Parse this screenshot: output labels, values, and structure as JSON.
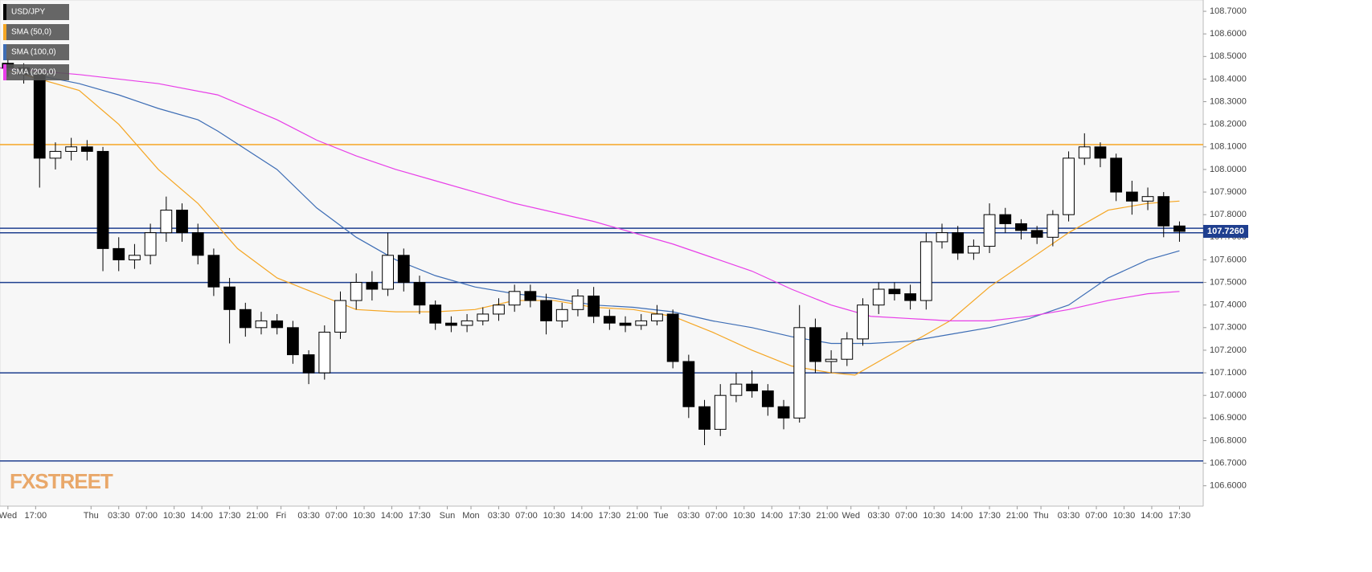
{
  "chart_data": {
    "type": "candlestick",
    "logo": "FXSTREET",
    "xlim": [
      0,
      304
    ],
    "ylim": [
      106.51,
      108.75
    ],
    "xticks": [
      {
        "value": 2,
        "label": "Wed"
      },
      {
        "value": 9,
        "label": "17:00"
      },
      {
        "value": 23,
        "label": "Thu"
      },
      {
        "value": 30,
        "label": "03:30"
      },
      {
        "value": 37,
        "label": "07:00"
      },
      {
        "value": 44,
        "label": "10:30"
      },
      {
        "value": 51,
        "label": "14:00"
      },
      {
        "value": 58,
        "label": "17:30"
      },
      {
        "value": 65,
        "label": "21:00"
      },
      {
        "value": 71,
        "label": "Fri"
      },
      {
        "value": 78,
        "label": "03:30"
      },
      {
        "value": 85,
        "label": "07:00"
      },
      {
        "value": 92,
        "label": "10:30"
      },
      {
        "value": 99,
        "label": "14:00"
      },
      {
        "value": 106,
        "label": "17:30"
      },
      {
        "value": 113,
        "label": "Sun"
      },
      {
        "value": 119,
        "label": "Mon"
      },
      {
        "value": 126,
        "label": "03:30"
      },
      {
        "value": 133,
        "label": "07:00"
      },
      {
        "value": 140,
        "label": "10:30"
      },
      {
        "value": 147,
        "label": "14:00"
      },
      {
        "value": 154,
        "label": "17:30"
      },
      {
        "value": 161,
        "label": "21:00"
      },
      {
        "value": 167,
        "label": "Tue"
      },
      {
        "value": 174,
        "label": "03:30"
      },
      {
        "value": 181,
        "label": "07:00"
      },
      {
        "value": 188,
        "label": "10:30"
      },
      {
        "value": 195,
        "label": "14:00"
      },
      {
        "value": 202,
        "label": "17:30"
      },
      {
        "value": 209,
        "label": "21:00"
      },
      {
        "value": 215,
        "label": "Wed"
      },
      {
        "value": 222,
        "label": "03:30"
      },
      {
        "value": 229,
        "label": "07:00"
      },
      {
        "value": 236,
        "label": "10:30"
      },
      {
        "value": 243,
        "label": "14:00"
      },
      {
        "value": 250,
        "label": "17:30"
      },
      {
        "value": 257,
        "label": "21:00"
      },
      {
        "value": 263,
        "label": "Thu"
      },
      {
        "value": 270,
        "label": "03:30"
      },
      {
        "value": 277,
        "label": "07:00"
      },
      {
        "value": 284,
        "label": "10:30"
      },
      {
        "value": 291,
        "label": "14:00"
      },
      {
        "value": 298,
        "label": "17:30"
      }
    ],
    "yticks": [
      {
        "value": 106.6,
        "label": "106.6000"
      },
      {
        "value": 106.7,
        "label": "106.7000"
      },
      {
        "value": 106.8,
        "label": "106.8000"
      },
      {
        "value": 106.9,
        "label": "106.9000"
      },
      {
        "value": 107.0,
        "label": "107.0000"
      },
      {
        "value": 107.1,
        "label": "107.1000"
      },
      {
        "value": 107.2,
        "label": "107.2000"
      },
      {
        "value": 107.3,
        "label": "107.3000"
      },
      {
        "value": 107.4,
        "label": "107.4000"
      },
      {
        "value": 107.5,
        "label": "107.5000"
      },
      {
        "value": 107.6,
        "label": "107.6000"
      },
      {
        "value": 107.7,
        "label": "107.7000"
      },
      {
        "value": 107.8,
        "label": "107.8000"
      },
      {
        "value": 107.9,
        "label": "107.9000"
      },
      {
        "value": 108.0,
        "label": "108.0000"
      },
      {
        "value": 108.1,
        "label": "108.1000"
      },
      {
        "value": 108.2,
        "label": "108.2000"
      },
      {
        "value": 108.3,
        "label": "108.3000"
      },
      {
        "value": 108.4,
        "label": "108.4000"
      },
      {
        "value": 108.5,
        "label": "108.5000"
      },
      {
        "value": 108.6,
        "label": "108.6000"
      },
      {
        "value": 108.7,
        "label": "108.7000"
      }
    ],
    "candles": {
      "name": "USD/JPY",
      "color": "#000000",
      "up_color": "#ffffff",
      "x": [
        2,
        6,
        10,
        14,
        18,
        22,
        26,
        30,
        34,
        38,
        42,
        46,
        50,
        54,
        58,
        62,
        66,
        70,
        74,
        78,
        82,
        86,
        90,
        94,
        98,
        102,
        106,
        110,
        114,
        118,
        122,
        126,
        130,
        134,
        138,
        142,
        146,
        150,
        154,
        158,
        162,
        166,
        170,
        174,
        178,
        182,
        186,
        190,
        194,
        198,
        202,
        206,
        210,
        214,
        218,
        222,
        226,
        230,
        234,
        238,
        242,
        246,
        250,
        254,
        258,
        262,
        266,
        270,
        274,
        278,
        282,
        286,
        290,
        294,
        298
      ],
      "open": [
        108.47,
        108.45,
        108.42,
        108.05,
        108.08,
        108.1,
        108.08,
        107.65,
        107.6,
        107.62,
        107.72,
        107.82,
        107.72,
        107.62,
        107.48,
        107.38,
        107.3,
        107.33,
        107.3,
        107.18,
        107.1,
        107.28,
        107.42,
        107.5,
        107.47,
        107.62,
        107.5,
        107.4,
        107.32,
        107.31,
        107.33,
        107.36,
        107.4,
        107.46,
        107.42,
        107.33,
        107.38,
        107.44,
        107.35,
        107.32,
        107.31,
        107.33,
        107.36,
        107.15,
        106.95,
        106.85,
        107.0,
        107.05,
        107.02,
        106.95,
        106.9,
        107.3,
        107.15,
        107.16,
        107.25,
        107.4,
        107.47,
        107.45,
        107.42,
        107.68,
        107.72,
        107.63,
        107.66,
        107.8,
        107.76,
        107.73,
        107.7,
        107.8,
        108.05,
        108.1,
        108.05,
        107.9,
        107.86,
        107.88,
        107.75
      ],
      "high": [
        108.49,
        108.47,
        108.45,
        108.12,
        108.14,
        108.13,
        108.1,
        107.7,
        107.67,
        107.76,
        107.88,
        107.85,
        107.76,
        107.65,
        107.52,
        107.41,
        107.37,
        107.36,
        107.33,
        107.2,
        107.31,
        107.46,
        107.54,
        107.55,
        107.72,
        107.65,
        107.53,
        107.42,
        107.35,
        107.36,
        107.39,
        107.43,
        107.49,
        107.49,
        107.45,
        107.41,
        107.47,
        107.48,
        107.38,
        107.35,
        107.36,
        107.4,
        107.38,
        107.18,
        106.98,
        107.05,
        107.1,
        107.11,
        107.05,
        106.98,
        107.4,
        107.34,
        107.2,
        107.28,
        107.43,
        107.5,
        107.5,
        107.49,
        107.72,
        107.76,
        107.75,
        107.69,
        107.85,
        107.83,
        107.78,
        107.75,
        107.82,
        108.08,
        108.16,
        108.12,
        108.07,
        107.95,
        107.92,
        107.9,
        107.77
      ],
      "low": [
        108.41,
        108.38,
        107.92,
        108.0,
        108.04,
        108.04,
        107.55,
        107.55,
        107.56,
        107.58,
        107.68,
        107.68,
        107.58,
        107.44,
        107.23,
        107.26,
        107.27,
        107.27,
        107.14,
        107.05,
        107.07,
        107.25,
        107.38,
        107.42,
        107.44,
        107.46,
        107.36,
        107.29,
        107.28,
        107.28,
        107.31,
        107.33,
        107.37,
        107.39,
        107.27,
        107.3,
        107.35,
        107.32,
        107.29,
        107.28,
        107.29,
        107.31,
        107.12,
        106.9,
        106.78,
        106.82,
        106.97,
        106.99,
        106.91,
        106.85,
        106.88,
        107.1,
        107.1,
        107.13,
        107.22,
        107.36,
        107.42,
        107.38,
        107.38,
        107.65,
        107.6,
        107.6,
        107.63,
        107.72,
        107.69,
        107.67,
        107.66,
        107.77,
        108.02,
        108.01,
        107.86,
        107.8,
        107.82,
        107.7,
        107.68
      ],
      "close": [
        108.45,
        108.42,
        108.05,
        108.08,
        108.1,
        108.08,
        107.65,
        107.6,
        107.62,
        107.72,
        107.82,
        107.72,
        107.62,
        107.48,
        107.38,
        107.3,
        107.33,
        107.3,
        107.18,
        107.1,
        107.28,
        107.42,
        107.5,
        107.47,
        107.62,
        107.5,
        107.4,
        107.32,
        107.31,
        107.33,
        107.36,
        107.4,
        107.46,
        107.42,
        107.33,
        107.38,
        107.44,
        107.35,
        107.32,
        107.31,
        107.33,
        107.36,
        107.15,
        106.95,
        106.85,
        107.0,
        107.05,
        107.02,
        106.95,
        106.9,
        107.3,
        107.15,
        107.16,
        107.25,
        107.4,
        107.47,
        107.45,
        107.42,
        107.68,
        107.72,
        107.63,
        107.66,
        107.8,
        107.76,
        107.73,
        107.7,
        107.8,
        108.05,
        108.1,
        108.05,
        107.9,
        107.86,
        107.88,
        107.75,
        107.726
      ]
    },
    "series": [
      {
        "name": "SMA (50,0)",
        "color": "#f5a623",
        "x": [
          0,
          20,
          30,
          40,
          50,
          60,
          70,
          80,
          90,
          100,
          110,
          120,
          130,
          140,
          150,
          160,
          170,
          180,
          190,
          200,
          210,
          216,
          222,
          230,
          240,
          250,
          260,
          270,
          280,
          290,
          298
        ],
        "values": [
          108.45,
          108.35,
          108.2,
          108.0,
          107.85,
          107.65,
          107.52,
          107.45,
          107.38,
          107.37,
          107.37,
          107.38,
          107.42,
          107.42,
          107.39,
          107.38,
          107.35,
          107.28,
          107.2,
          107.13,
          107.1,
          107.09,
          107.15,
          107.23,
          107.33,
          107.48,
          107.6,
          107.72,
          107.82,
          107.85,
          107.86
        ]
      },
      {
        "name": "SMA (100,0)",
        "color": "#3d6db5",
        "x": [
          0,
          20,
          30,
          40,
          50,
          55,
          70,
          80,
          90,
          100,
          110,
          120,
          130,
          140,
          150,
          160,
          170,
          180,
          190,
          200,
          210,
          220,
          230,
          240,
          250,
          260,
          270,
          280,
          290,
          298
        ],
        "values": [
          108.45,
          108.38,
          108.33,
          108.27,
          108.22,
          108.17,
          108.0,
          107.83,
          107.7,
          107.6,
          107.53,
          107.48,
          107.45,
          107.43,
          107.4,
          107.39,
          107.37,
          107.33,
          107.3,
          107.26,
          107.23,
          107.23,
          107.24,
          107.27,
          107.3,
          107.34,
          107.4,
          107.52,
          107.6,
          107.64
        ]
      },
      {
        "name": "SMA (200,0)",
        "color": "#e83ee8",
        "x": [
          0,
          20,
          40,
          55,
          70,
          80,
          90,
          100,
          110,
          120,
          130,
          140,
          150,
          160,
          170,
          180,
          190,
          200,
          210,
          220,
          230,
          240,
          250,
          260,
          270,
          280,
          290,
          298
        ],
        "values": [
          108.45,
          108.42,
          108.38,
          108.33,
          108.22,
          108.13,
          108.06,
          108.0,
          107.95,
          107.9,
          107.85,
          107.81,
          107.77,
          107.72,
          107.67,
          107.61,
          107.55,
          107.47,
          107.4,
          107.35,
          107.34,
          107.33,
          107.33,
          107.35,
          107.38,
          107.42,
          107.45,
          107.46
        ]
      }
    ],
    "levels": [
      {
        "value": 108.11,
        "color": "#f5a623"
      },
      {
        "value": 107.74,
        "color": "#1f3f8f"
      },
      {
        "value": 107.72,
        "color": "#1f3f8f"
      },
      {
        "value": 107.5,
        "color": "#1f3f8f"
      },
      {
        "value": 107.1,
        "color": "#1f3f8f"
      },
      {
        "value": 106.71,
        "color": "#1f3f8f"
      }
    ],
    "last_price": {
      "value": 107.726,
      "label": "107.7260",
      "color": "#1f3f8f"
    }
  }
}
